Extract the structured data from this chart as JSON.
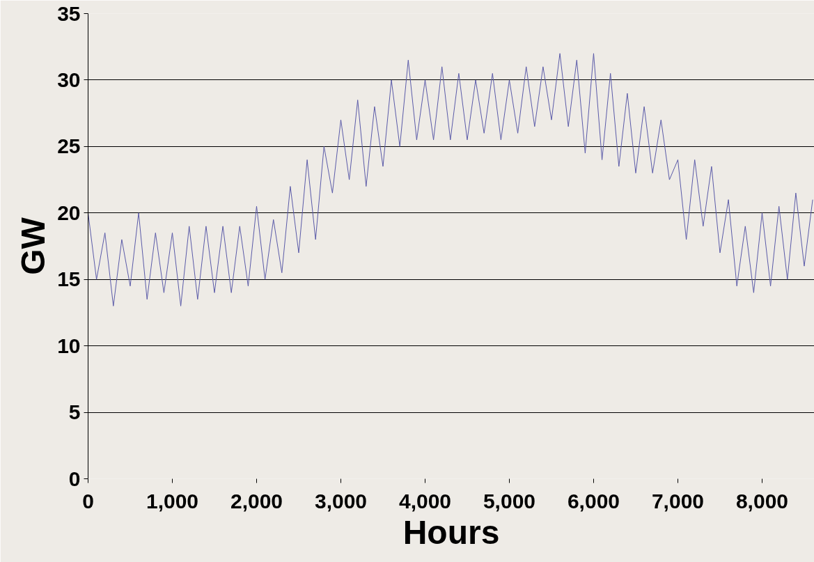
{
  "chart_data": {
    "type": "line",
    "xlabel": "Hours",
    "ylabel": "GW",
    "x": [
      0,
      100,
      200,
      300,
      400,
      500,
      600,
      700,
      800,
      900,
      1000,
      1100,
      1200,
      1300,
      1400,
      1500,
      1600,
      1700,
      1800,
      1900,
      2000,
      2100,
      2200,
      2300,
      2400,
      2500,
      2600,
      2700,
      2800,
      2900,
      3000,
      3100,
      3200,
      3300,
      3400,
      3500,
      3600,
      3700,
      3800,
      3900,
      4000,
      4100,
      4200,
      4300,
      4400,
      4500,
      4600,
      4700,
      4800,
      4900,
      5000,
      5100,
      5200,
      5300,
      5400,
      5500,
      5600,
      5700,
      5800,
      5900,
      6000,
      6100,
      6200,
      6300,
      6400,
      6500,
      6600,
      6700,
      6800,
      6900,
      7000,
      7100,
      7200,
      7300,
      7400,
      7500,
      7600,
      7700,
      7800,
      7900,
      8000,
      8100,
      8200,
      8300,
      8400,
      8500,
      8600
    ],
    "series": [
      {
        "color": "#5a5aa8",
        "values": [
          20,
          15,
          18.5,
          13,
          18,
          14.5,
          20,
          13.5,
          18.5,
          14,
          18.5,
          13,
          19,
          13.5,
          19,
          14,
          19,
          14,
          19,
          14.5,
          20.5,
          15,
          19.5,
          15.5,
          22,
          17,
          24,
          18,
          25,
          21.5,
          27,
          22.5,
          28.5,
          22,
          28,
          23.5,
          30,
          25,
          31.5,
          25.5,
          30,
          25.5,
          31,
          25.5,
          30.5,
          25.5,
          30,
          26,
          30.5,
          25.5,
          30,
          26,
          31,
          26.5,
          31,
          27,
          32,
          26.5,
          31.5,
          24.5,
          32,
          24,
          30.5,
          23.5,
          29,
          23,
          28,
          23,
          27,
          22.5,
          24,
          18,
          24,
          19,
          23.5,
          17,
          21,
          14.5,
          19,
          14,
          20,
          14.5,
          20.5,
          15,
          21.5,
          16,
          21
        ]
      }
    ],
    "xlim": [
      0,
      8620
    ],
    "ylim": [
      0,
      35
    ],
    "xticks": [
      0,
      {
        "value": 1000,
        "label": "1,000"
      },
      {
        "value": 2000,
        "label": "2,000"
      },
      {
        "value": 3000,
        "label": "3,000"
      },
      {
        "value": 4000,
        "label": "4,000"
      },
      {
        "value": 5000,
        "label": "5,000"
      },
      {
        "value": 6000,
        "label": "6,000"
      },
      {
        "value": 7000,
        "label": "7,000"
      },
      {
        "value": 8000,
        "label": "8,000"
      }
    ],
    "yticks": [
      0,
      5,
      10,
      15,
      20,
      25,
      30,
      35
    ],
    "grid": "y",
    "line_style": "solid"
  }
}
